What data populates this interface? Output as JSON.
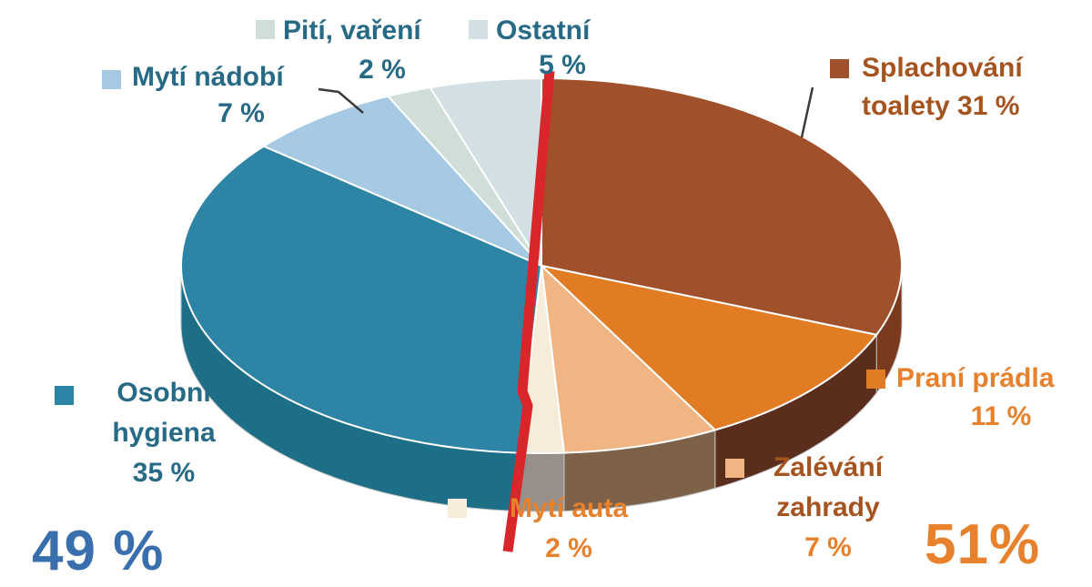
{
  "chart_data": {
    "type": "pie",
    "style": "3d-pie",
    "unit": "%",
    "slices": [
      {
        "label": "Splachování toalety",
        "value": 31,
        "pct_label": "31 %",
        "color": "#a0502a",
        "side_color": "#7b3a1e",
        "text_color": "#a5541f"
      },
      {
        "label": "Praní prádla",
        "value": 11,
        "pct_label": "11 %",
        "color": "#e17c25",
        "side_color": "#5a2d1d",
        "text_color": "#e8812c"
      },
      {
        "label": "Zalévání zahrady",
        "value": 7,
        "pct_label": "7 %",
        "color": "#f0b583",
        "side_color": "#7d6149",
        "text_color": "#a5541f"
      },
      {
        "label": "Mytí auta",
        "value": 2,
        "pct_label": "2 %",
        "color": "#f6ecd9",
        "side_color": "#97908a",
        "text_color": "#e8812c"
      },
      {
        "label": "Osobní hygiena",
        "value": 35,
        "pct_label": "35 %",
        "color": "#2e84a5",
        "side_color": "#1d6f88",
        "text_color": "#266a85"
      },
      {
        "label": "Mytí nádobí",
        "value": 7,
        "pct_label": "7 %",
        "color": "#a6c9e4",
        "side_color": "#7fa3c4",
        "text_color": "#266a85"
      },
      {
        "label": "Pití, vaření",
        "value": 2,
        "pct_label": "2 %",
        "color": "#cfdfd8",
        "side_color": "#a8bcb4",
        "text_color": "#266a85"
      },
      {
        "label": "Ostatní",
        "value": 5,
        "pct_label": "5 %",
        "color": "#d2e0e4",
        "side_color": "#aabfc6",
        "text_color": "#266a85"
      }
    ],
    "groups": [
      {
        "side": "left",
        "value": 49,
        "label": "49 %",
        "color": "#3a6fad"
      },
      {
        "side": "right",
        "value": 51,
        "label": "51%",
        "color": "#e8812c"
      }
    ],
    "divider_color": "#d9262b",
    "legend_position": "around"
  },
  "labels": {
    "splachovani": {
      "line1": "Splachování",
      "line2": "toalety 31 %"
    },
    "prani": {
      "name": "Praní prádla",
      "pct": "11 %"
    },
    "zalevani": {
      "line1": "Zalévání",
      "line2": "zahrady",
      "pct": "7 %"
    },
    "myti_auta": {
      "name": "Mytí auta",
      "pct": "2 %"
    },
    "osobni": {
      "line1": "Osobní",
      "line2": "hygiena",
      "pct": "35 %"
    },
    "myti_nadobi": {
      "name": "Mytí nádobí",
      "pct": "7 %"
    },
    "piti_vareni": {
      "name": "Pití, vaření",
      "pct": "2 %"
    },
    "ostatni": {
      "name": "Ostatní",
      "pct": "5 %"
    },
    "total_left": "49 %",
    "total_right": "51%"
  }
}
